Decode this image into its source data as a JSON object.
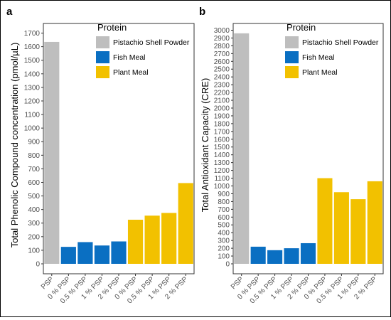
{
  "chart_data": [
    {
      "type": "bar",
      "panel": "a",
      "ylabel": "Total Phenolic Compound concentration (pmol/µL)",
      "xlabel": "",
      "categories": [
        "PSP",
        "0 % PSP",
        "0.5 % PSP",
        "1 % PSP",
        "2 % PSP",
        "0 % PSP",
        "0.5 % PSP",
        "1 % PSP",
        "2 % PSP"
      ],
      "groups": [
        "Pistachio Shell Powder",
        "Fish Meal",
        "Fish Meal",
        "Fish Meal",
        "Fish Meal",
        "Plant Meal",
        "Plant Meal",
        "Plant Meal",
        "Plant Meal"
      ],
      "values": [
        1635,
        125,
        160,
        135,
        165,
        325,
        355,
        375,
        595
      ],
      "ylim": [
        0,
        1750
      ],
      "yticks": [
        0,
        100,
        200,
        300,
        400,
        500,
        600,
        700,
        800,
        900,
        1000,
        1100,
        1200,
        1300,
        1400,
        1500,
        1600,
        1700
      ],
      "legend": {
        "title": "Protein",
        "placement": "top-right",
        "items": [
          {
            "label": "Pistachio Shell Powder",
            "color": "#bebebe"
          },
          {
            "label": "Fish Meal",
            "color": "#0a6fc2"
          },
          {
            "label": "Plant Meal",
            "color": "#f2c100"
          }
        ]
      },
      "grid": false
    },
    {
      "type": "bar",
      "panel": "b",
      "ylabel": "Total Antioxidant Capacity (CRE)",
      "xlabel": "",
      "categories": [
        "PSP",
        "0 % PSP",
        "0.5 % PSP",
        "1 % PSP",
        "2 % PSP",
        "0 % PSP",
        "0.5 % PSP",
        "1 % PSP",
        "2 % PSP"
      ],
      "groups": [
        "Pistachio Shell Powder",
        "Fish Meal",
        "Fish Meal",
        "Fish Meal",
        "Fish Meal",
        "Plant Meal",
        "Plant Meal",
        "Plant Meal",
        "Plant Meal"
      ],
      "values": [
        2960,
        220,
        175,
        200,
        265,
        1100,
        920,
        830,
        1060
      ],
      "ylim": [
        0,
        3050
      ],
      "yticks": [
        0,
        100,
        200,
        300,
        400,
        500,
        600,
        700,
        800,
        900,
        1000,
        1100,
        1200,
        1300,
        1400,
        1500,
        1600,
        1700,
        1800,
        1900,
        2000,
        2100,
        2200,
        2300,
        2400,
        2500,
        2600,
        2700,
        2800,
        2900,
        3000
      ],
      "legend": {
        "title": "Protein",
        "placement": "top-right",
        "items": [
          {
            "label": "Pistachio Shell Powder",
            "color": "#bebebe"
          },
          {
            "label": "Fish Meal",
            "color": "#0a6fc2"
          },
          {
            "label": "Plant Meal",
            "color": "#f2c100"
          }
        ]
      },
      "grid": false
    }
  ],
  "colors": {
    "Pistachio Shell Powder": "#bebebe",
    "Fish Meal": "#0a6fc2",
    "Plant Meal": "#f2c100"
  }
}
